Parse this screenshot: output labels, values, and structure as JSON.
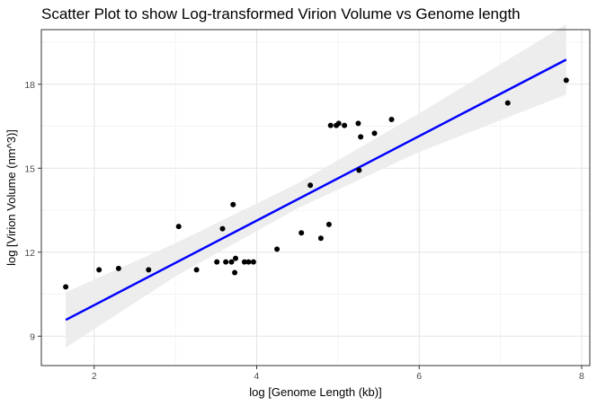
{
  "chart_data": {
    "type": "scatter",
    "title": "Scatter Plot to show Log-transformed Virion Volume vs Genome length",
    "xlabel": "log [Genome Length (kb)]",
    "ylabel": "log [Virion Volume (nm^3)]",
    "xlim": [
      1.35,
      8.1
    ],
    "ylim": [
      7.95,
      19.95
    ],
    "x_ticks": [
      2,
      4,
      6,
      8
    ],
    "y_ticks": [
      9,
      12,
      15,
      18
    ],
    "grid": true,
    "legend": "none",
    "points": [
      {
        "x": 1.65,
        "y": 10.76
      },
      {
        "x": 2.06,
        "y": 11.37
      },
      {
        "x": 2.3,
        "y": 11.42
      },
      {
        "x": 2.67,
        "y": 11.37
      },
      {
        "x": 3.04,
        "y": 12.92
      },
      {
        "x": 3.26,
        "y": 11.37
      },
      {
        "x": 3.51,
        "y": 11.65
      },
      {
        "x": 3.58,
        "y": 12.84
      },
      {
        "x": 3.62,
        "y": 11.65
      },
      {
        "x": 3.69,
        "y": 11.65
      },
      {
        "x": 3.71,
        "y": 13.7
      },
      {
        "x": 3.73,
        "y": 11.27
      },
      {
        "x": 3.74,
        "y": 11.78
      },
      {
        "x": 3.85,
        "y": 11.65
      },
      {
        "x": 3.9,
        "y": 11.65
      },
      {
        "x": 3.96,
        "y": 11.65
      },
      {
        "x": 4.25,
        "y": 12.11
      },
      {
        "x": 4.55,
        "y": 12.69
      },
      {
        "x": 4.66,
        "y": 14.39
      },
      {
        "x": 4.79,
        "y": 12.5
      },
      {
        "x": 4.89,
        "y": 12.99
      },
      {
        "x": 4.91,
        "y": 16.53
      },
      {
        "x": 4.98,
        "y": 16.53
      },
      {
        "x": 5.01,
        "y": 16.6
      },
      {
        "x": 5.08,
        "y": 16.53
      },
      {
        "x": 5.25,
        "y": 16.6
      },
      {
        "x": 5.26,
        "y": 14.93
      },
      {
        "x": 5.28,
        "y": 16.12
      },
      {
        "x": 5.45,
        "y": 16.25
      },
      {
        "x": 5.66,
        "y": 16.74
      },
      {
        "x": 7.09,
        "y": 17.33
      },
      {
        "x": 7.81,
        "y": 18.14
      }
    ],
    "fit_line": {
      "x_start": 1.65,
      "y_start": 9.58,
      "x_end": 7.81,
      "y_end": 18.88,
      "color": "#0000ff"
    },
    "confidence_band": {
      "x": [
        1.65,
        3.0,
        4.5,
        6.0,
        7.81
      ],
      "lower": [
        8.59,
        11.14,
        13.56,
        15.58,
        17.63
      ],
      "upper": [
        10.57,
        12.32,
        14.45,
        16.96,
        20.14
      ],
      "color": "#ebebeb"
    },
    "point_color": "#000000"
  }
}
